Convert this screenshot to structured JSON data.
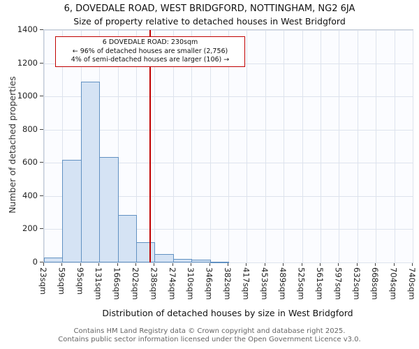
{
  "title": "6, DOVEDALE ROAD, WEST BRIDGFORD, NOTTINGHAM, NG2 6JA",
  "subtitle": "Size of property relative to detached houses in West Bridgford",
  "annotation": {
    "line1": "6 DOVEDALE ROAD: 230sqm",
    "line2": "← 96% of detached houses are smaller (2,756)",
    "line3": "4% of semi-detached houses are larger (106) →"
  },
  "footer": {
    "line1": "Contains HM Land Registry data © Crown copyright and database right 2025.",
    "line2": "Contains public sector information licensed under the Open Government Licence v3.0."
  },
  "chart_data": {
    "type": "bar",
    "title": "Size of property relative to detached houses in West Bridgford",
    "xlabel": "Distribution of detached houses by size in West Bridgford",
    "ylabel": "Number of detached properties",
    "bin_edges_sqm": [
      23,
      59,
      95,
      131,
      166,
      202,
      238,
      274,
      310,
      346,
      382,
      417,
      453,
      489,
      525,
      561,
      597,
      632,
      668,
      704,
      740
    ],
    "x_tick_labels": [
      "23sqm",
      "59sqm",
      "95sqm",
      "131sqm",
      "166sqm",
      "202sqm",
      "238sqm",
      "274sqm",
      "310sqm",
      "346sqm",
      "382sqm",
      "417sqm",
      "453sqm",
      "489sqm",
      "525sqm",
      "561sqm",
      "597sqm",
      "632sqm",
      "668sqm",
      "704sqm",
      "740sqm"
    ],
    "values": [
      30,
      620,
      1090,
      635,
      285,
      120,
      50,
      20,
      18,
      5,
      0,
      0,
      0,
      0,
      0,
      0,
      0,
      0,
      0,
      0
    ],
    "y_ticks": [
      0,
      200,
      400,
      600,
      800,
      1000,
      1200,
      1400
    ],
    "ylim": [
      0,
      1400
    ],
    "grid": true,
    "legend": "none",
    "marker_value_sqm": 230,
    "property_label": "6 DOVEDALE ROAD",
    "smaller_pct": 96,
    "smaller_count": 2756,
    "larger_pct": 4,
    "larger_count": 106,
    "colors": {
      "bar_fill": "#d5e3f4",
      "bar_border": "#6191c2",
      "marker_line": "#c00000",
      "annotation_border": "#c00000",
      "grid": "#dde3ed"
    }
  }
}
